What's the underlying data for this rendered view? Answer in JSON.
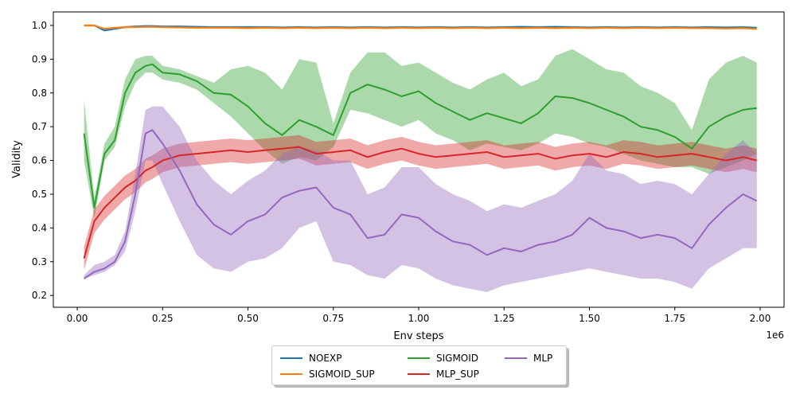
{
  "chart_data": {
    "type": "line",
    "title": "",
    "xlabel": "Env steps",
    "ylabel": "Validity",
    "x_offset_label": "1e6",
    "xlim": [
      -0.07,
      2.07
    ],
    "ylim": [
      0.165,
      1.04
    ],
    "x_ticks": [
      0.0,
      0.25,
      0.5,
      0.75,
      1.0,
      1.25,
      1.5,
      1.75,
      2.0
    ],
    "x_tick_labels": [
      "0.00",
      "0.25",
      "0.50",
      "0.75",
      "1.00",
      "1.25",
      "1.50",
      "1.75",
      "2.00"
    ],
    "y_ticks": [
      0.2,
      0.3,
      0.4,
      0.5,
      0.6,
      0.7,
      0.8,
      0.9,
      1.0
    ],
    "y_tick_labels": [
      "0.2",
      "0.3",
      "0.4",
      "0.5",
      "0.6",
      "0.7",
      "0.8",
      "0.9",
      "1.0"
    ],
    "legend_position": "below-center",
    "grid": false,
    "x": [
      0.02,
      0.05,
      0.08,
      0.11,
      0.14,
      0.17,
      0.2,
      0.22,
      0.25,
      0.3,
      0.35,
      0.4,
      0.45,
      0.5,
      0.55,
      0.6,
      0.65,
      0.7,
      0.75,
      0.8,
      0.85,
      0.9,
      0.95,
      1.0,
      1.05,
      1.1,
      1.15,
      1.2,
      1.25,
      1.3,
      1.35,
      1.4,
      1.45,
      1.5,
      1.55,
      1.6,
      1.65,
      1.7,
      1.75,
      1.8,
      1.85,
      1.9,
      1.95,
      1.99
    ],
    "series": [
      {
        "name": "NOEXP",
        "color": "#1f77b4",
        "mean": [
          1.0,
          1.0,
          0.985,
          0.99,
          0.995,
          0.997,
          0.998,
          0.998,
          0.997,
          0.997,
          0.996,
          0.995,
          0.995,
          0.995,
          0.995,
          0.994,
          0.995,
          0.994,
          0.995,
          0.994,
          0.995,
          0.994,
          0.995,
          0.994,
          0.995,
          0.994,
          0.995,
          0.994,
          0.995,
          0.996,
          0.995,
          0.996,
          0.995,
          0.994,
          0.995,
          0.994,
          0.995,
          0.994,
          0.995,
          0.994,
          0.995,
          0.994,
          0.995,
          0.993
        ],
        "band": 0.003
      },
      {
        "name": "SIGMOID_SUP",
        "color": "#ff7f0e",
        "mean": [
          1.0,
          1.0,
          0.99,
          0.993,
          0.995,
          0.995,
          0.996,
          0.996,
          0.995,
          0.994,
          0.993,
          0.993,
          0.993,
          0.992,
          0.993,
          0.992,
          0.993,
          0.992,
          0.993,
          0.992,
          0.993,
          0.992,
          0.993,
          0.992,
          0.993,
          0.992,
          0.993,
          0.992,
          0.993,
          0.992,
          0.993,
          0.992,
          0.993,
          0.992,
          0.993,
          0.992,
          0.993,
          0.992,
          0.993,
          0.992,
          0.992,
          0.991,
          0.992,
          0.99
        ],
        "band": 0.003
      },
      {
        "name": "SIGMOID",
        "color": "#2ca02c",
        "mean": [
          0.68,
          0.46,
          0.62,
          0.66,
          0.8,
          0.86,
          0.88,
          0.885,
          0.86,
          0.855,
          0.835,
          0.8,
          0.795,
          0.76,
          0.71,
          0.675,
          0.72,
          0.7,
          0.675,
          0.8,
          0.825,
          0.81,
          0.79,
          0.805,
          0.77,
          0.745,
          0.72,
          0.74,
          0.725,
          0.71,
          0.74,
          0.79,
          0.785,
          0.77,
          0.75,
          0.73,
          0.7,
          0.69,
          0.67,
          0.635,
          0.7,
          0.73,
          0.75,
          0.755
        ],
        "lower": [
          0.6,
          0.43,
          0.6,
          0.64,
          0.76,
          0.83,
          0.86,
          0.86,
          0.84,
          0.83,
          0.81,
          0.77,
          0.73,
          0.68,
          0.63,
          0.59,
          0.61,
          0.6,
          0.64,
          0.75,
          0.74,
          0.72,
          0.7,
          0.72,
          0.68,
          0.66,
          0.63,
          0.65,
          0.64,
          0.63,
          0.65,
          0.68,
          0.67,
          0.65,
          0.64,
          0.62,
          0.6,
          0.59,
          0.58,
          0.58,
          0.56,
          0.58,
          0.6,
          0.62
        ],
        "upper": [
          0.78,
          0.49,
          0.65,
          0.7,
          0.84,
          0.9,
          0.91,
          0.91,
          0.88,
          0.87,
          0.85,
          0.83,
          0.87,
          0.88,
          0.86,
          0.81,
          0.9,
          0.89,
          0.71,
          0.86,
          0.92,
          0.92,
          0.88,
          0.89,
          0.86,
          0.83,
          0.81,
          0.84,
          0.86,
          0.82,
          0.84,
          0.91,
          0.93,
          0.9,
          0.87,
          0.86,
          0.82,
          0.8,
          0.77,
          0.69,
          0.84,
          0.89,
          0.91,
          0.89
        ]
      },
      {
        "name": "MLP_SUP",
        "color": "#d62728",
        "mean": [
          0.31,
          0.42,
          0.46,
          0.49,
          0.52,
          0.54,
          0.57,
          0.58,
          0.6,
          0.615,
          0.62,
          0.625,
          0.63,
          0.625,
          0.63,
          0.635,
          0.64,
          0.62,
          0.625,
          0.63,
          0.61,
          0.625,
          0.635,
          0.62,
          0.61,
          0.615,
          0.62,
          0.625,
          0.61,
          0.615,
          0.62,
          0.605,
          0.615,
          0.62,
          0.61,
          0.625,
          0.62,
          0.61,
          0.615,
          0.62,
          0.61,
          0.6,
          0.61,
          0.6
        ],
        "band": 0.035
      },
      {
        "name": "MLP",
        "color": "#9467bd",
        "mean": [
          0.25,
          0.27,
          0.28,
          0.3,
          0.36,
          0.5,
          0.68,
          0.69,
          0.65,
          0.57,
          0.47,
          0.41,
          0.38,
          0.42,
          0.44,
          0.49,
          0.51,
          0.52,
          0.46,
          0.44,
          0.37,
          0.38,
          0.44,
          0.43,
          0.39,
          0.36,
          0.35,
          0.32,
          0.34,
          0.33,
          0.35,
          0.36,
          0.38,
          0.43,
          0.4,
          0.39,
          0.37,
          0.38,
          0.37,
          0.34,
          0.41,
          0.46,
          0.5,
          0.48
        ],
        "lower": [
          0.25,
          0.26,
          0.27,
          0.29,
          0.33,
          0.45,
          0.6,
          0.6,
          0.53,
          0.42,
          0.32,
          0.28,
          0.27,
          0.3,
          0.31,
          0.34,
          0.4,
          0.42,
          0.3,
          0.29,
          0.26,
          0.25,
          0.29,
          0.28,
          0.25,
          0.23,
          0.22,
          0.21,
          0.23,
          0.24,
          0.25,
          0.26,
          0.27,
          0.28,
          0.27,
          0.26,
          0.25,
          0.25,
          0.24,
          0.22,
          0.28,
          0.31,
          0.34,
          0.34
        ],
        "upper": [
          0.26,
          0.29,
          0.3,
          0.32,
          0.39,
          0.56,
          0.75,
          0.76,
          0.76,
          0.7,
          0.6,
          0.54,
          0.5,
          0.54,
          0.57,
          0.62,
          0.64,
          0.63,
          0.6,
          0.6,
          0.5,
          0.52,
          0.58,
          0.58,
          0.53,
          0.5,
          0.48,
          0.45,
          0.47,
          0.46,
          0.48,
          0.5,
          0.54,
          0.62,
          0.57,
          0.56,
          0.53,
          0.54,
          0.53,
          0.5,
          0.56,
          0.62,
          0.66,
          0.62
        ]
      }
    ]
  },
  "legend": {
    "items": [
      {
        "label": "NOEXP",
        "color": "#1f77b4"
      },
      {
        "label": "SIGMOID_SUP",
        "color": "#ff7f0e"
      },
      {
        "label": "SIGMOID",
        "color": "#2ca02c"
      },
      {
        "label": "MLP_SUP",
        "color": "#d62728"
      },
      {
        "label": "MLP",
        "color": "#9467bd"
      }
    ]
  }
}
